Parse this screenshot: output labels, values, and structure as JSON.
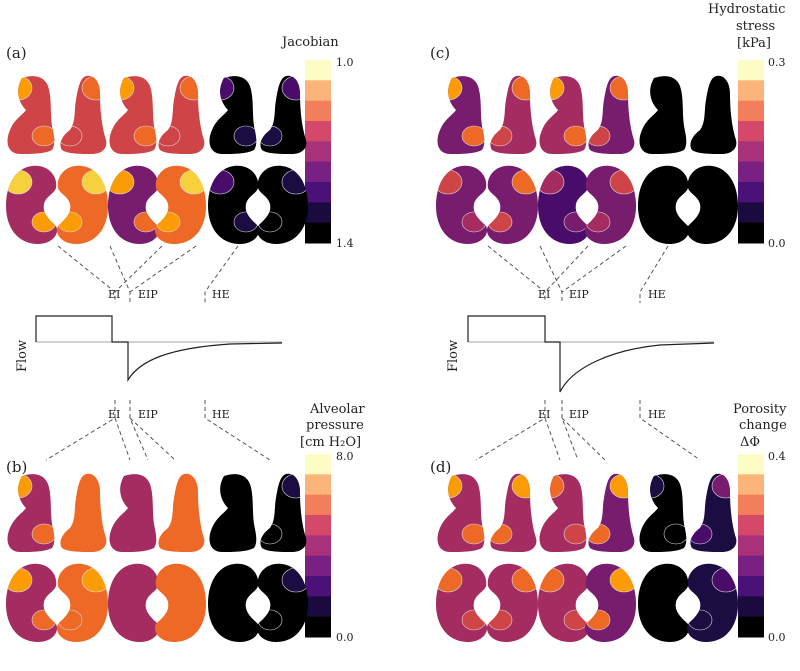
{
  "panels": {
    "a": {
      "label": "(a)",
      "title": [
        "Jacobian"
      ],
      "cb_top": "1.0",
      "cb_bottom": "1.4"
    },
    "b": {
      "label": "(b)",
      "title": [
        "Alveolar",
        "pressure",
        "[cm H₂O]"
      ],
      "cb_top": "8.0",
      "cb_bottom": "0.0"
    },
    "c": {
      "label": "(c)",
      "title": [
        "Hydrostatic",
        "stress",
        "[kPa]"
      ],
      "cb_top": "0.3",
      "cb_bottom": "0.0"
    },
    "d": {
      "label": "(d)",
      "title": [
        "Porosity",
        "change",
        "ΔΦ"
      ],
      "cb_top": "0.4",
      "cb_bottom": "0.0"
    }
  },
  "timepoints": {
    "ei": "EI",
    "eip": "EIP",
    "he": "HE"
  },
  "flow_label": "Flow",
  "colormap": [
    "#000000",
    "#1b0c41",
    "#4a0c6b",
    "#781c6d",
    "#a52c60",
    "#cf4446",
    "#ed6925",
    "#fb9b06",
    "#f7d13d",
    "#fcfdbf"
  ],
  "colorbar_colors": [
    "#fcfcc4",
    "#fbb47a",
    "#f37e5c",
    "#d4486a",
    "#a8317a",
    "#792182",
    "#4a1278",
    "#1a0a3e",
    "#000000"
  ]
}
